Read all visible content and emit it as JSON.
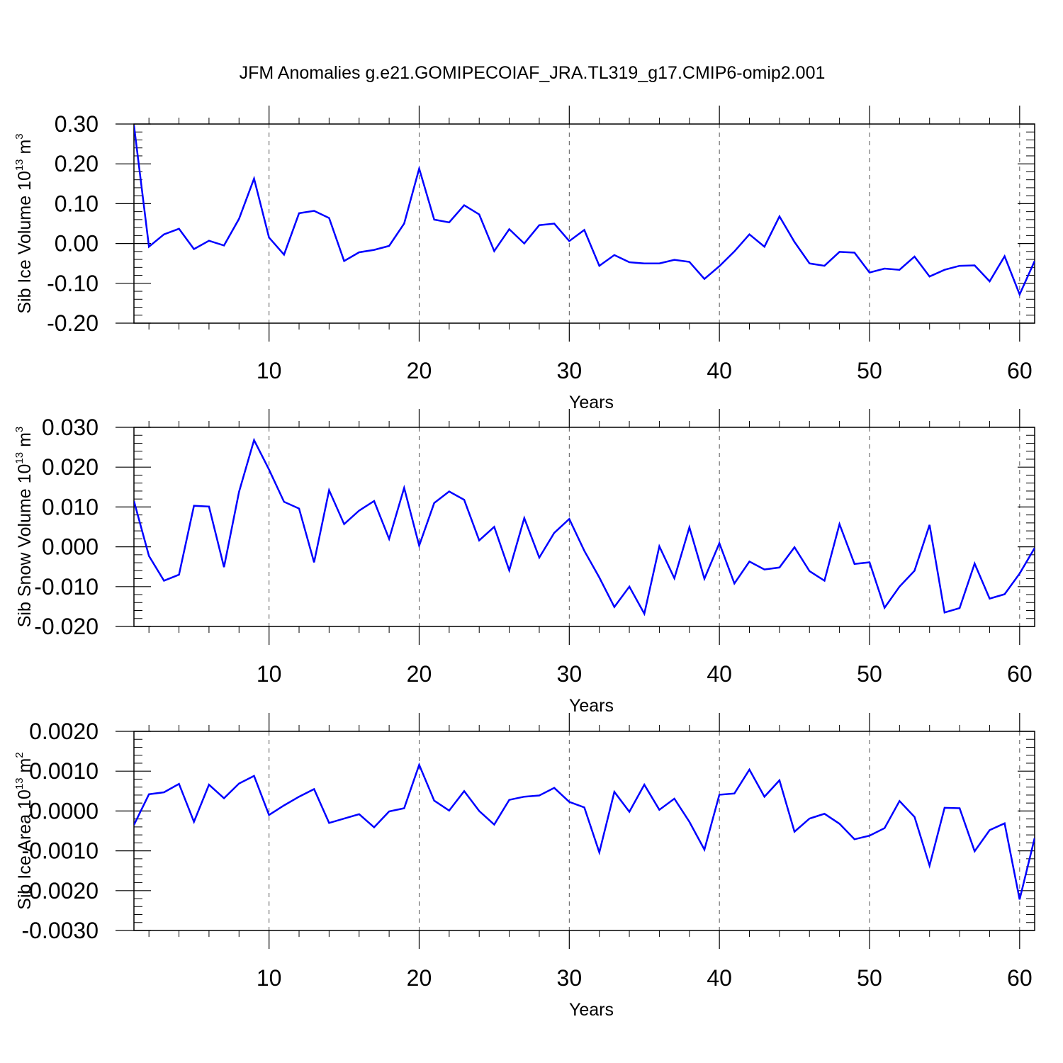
{
  "figure": {
    "title": "JFM Anomalies g.e21.GOMIPECOIAF_JRA.TL319_g17.CMIP6-omip2.001"
  },
  "colors": {
    "line": "#0000ff",
    "axis": "#000000",
    "grid": "#555555"
  },
  "chart_data": [
    {
      "type": "line",
      "xlabel": "Years",
      "ylabel": "Sib Ice Volume 10",
      "ylabel_exp": "13",
      "ylabel_unit": " m",
      "ylabel_unit_exp": "3",
      "xlim": [
        1,
        61
      ],
      "ylim": [
        -0.2,
        0.3
      ],
      "xticks": [
        10,
        20,
        30,
        40,
        50,
        60
      ],
      "yticks": [
        -0.2,
        -0.1,
        0.0,
        0.1,
        0.2,
        0.3
      ],
      "ytick_labels": [
        "-0.20",
        "-0.10",
        "0.00",
        "0.10",
        "0.20",
        "0.30"
      ],
      "grid": "vertical dashed at major x ticks",
      "x": [
        1,
        2,
        3,
        4,
        5,
        6,
        7,
        8,
        9,
        10,
        11,
        12,
        13,
        14,
        15,
        16,
        17,
        18,
        19,
        20,
        21,
        22,
        23,
        24,
        25,
        26,
        27,
        28,
        29,
        30,
        31,
        32,
        33,
        34,
        35,
        36,
        37,
        38,
        39,
        40,
        41,
        42,
        43,
        44,
        45,
        46,
        47,
        48,
        49,
        50,
        51,
        52,
        53,
        54,
        55,
        56,
        57,
        58,
        59,
        60,
        61
      ],
      "values": [
        0.297,
        -0.008,
        0.023,
        0.037,
        -0.014,
        0.007,
        -0.005,
        0.062,
        0.163,
        0.015,
        -0.028,
        0.076,
        0.082,
        0.064,
        -0.044,
        -0.022,
        -0.016,
        -0.006,
        0.05,
        0.188,
        0.06,
        0.053,
        0.096,
        0.073,
        -0.019,
        0.036,
        0.0,
        0.046,
        0.05,
        0.006,
        0.034,
        -0.056,
        -0.029,
        -0.047,
        -0.05,
        -0.05,
        -0.041,
        -0.046,
        -0.089,
        -0.057,
        -0.02,
        0.023,
        -0.008,
        0.068,
        0.004,
        -0.05,
        -0.056,
        -0.021,
        -0.023,
        -0.073,
        -0.063,
        -0.066,
        -0.033,
        -0.083,
        -0.066,
        -0.056,
        -0.055,
        -0.095,
        -0.032,
        -0.128,
        -0.044
      ]
    },
    {
      "type": "line",
      "xlabel": "Years",
      "ylabel": "Sib Snow Volume 10",
      "ylabel_exp": "13",
      "ylabel_unit": " m",
      "ylabel_unit_exp": "3",
      "xlim": [
        1,
        61
      ],
      "ylim": [
        -0.02,
        0.03
      ],
      "xticks": [
        10,
        20,
        30,
        40,
        50,
        60
      ],
      "yticks": [
        -0.02,
        -0.01,
        0.0,
        0.01,
        0.02,
        0.03
      ],
      "ytick_labels": [
        "-0.020",
        "-0.010",
        "0.000",
        "0.010",
        "0.020",
        "0.030"
      ],
      "grid": "vertical dashed at major x ticks",
      "x": [
        1,
        2,
        3,
        4,
        5,
        6,
        7,
        8,
        9,
        10,
        11,
        12,
        13,
        14,
        15,
        16,
        17,
        18,
        19,
        20,
        21,
        22,
        23,
        24,
        25,
        26,
        27,
        28,
        29,
        30,
        31,
        32,
        33,
        34,
        35,
        36,
        37,
        38,
        39,
        40,
        41,
        42,
        43,
        44,
        45,
        46,
        47,
        48,
        49,
        50,
        51,
        52,
        53,
        54,
        55,
        56,
        57,
        58,
        59,
        60,
        61
      ],
      "values": [
        0.0115,
        -0.0023,
        -0.0085,
        -0.007,
        0.0103,
        0.0101,
        -0.0051,
        0.0138,
        0.0268,
        0.0194,
        0.0113,
        0.0096,
        -0.0039,
        0.0142,
        0.0057,
        0.0091,
        0.0115,
        0.002,
        0.0148,
        0.0003,
        0.011,
        0.0139,
        0.0118,
        0.0016,
        0.005,
        -0.0059,
        0.0072,
        -0.0027,
        0.0035,
        0.007,
        -0.001,
        -0.0077,
        -0.0151,
        -0.01,
        -0.0168,
        0.0001,
        -0.0079,
        0.0049,
        -0.008,
        0.0009,
        -0.0092,
        -0.0037,
        -0.0057,
        -0.0052,
        -0.0001,
        -0.0061,
        -0.0085,
        0.0057,
        -0.0043,
        -0.0039,
        -0.0153,
        -0.01,
        -0.006,
        0.0055,
        -0.0165,
        -0.0154,
        -0.0042,
        -0.013,
        -0.0119,
        -0.0067,
        -0.0003
      ]
    },
    {
      "type": "line",
      "xlabel": "Years",
      "ylabel": "Sib Ice Area 10",
      "ylabel_exp": "13",
      "ylabel_unit": " m",
      "ylabel_unit_exp": "2",
      "xlim": [
        1,
        61
      ],
      "ylim": [
        -0.003,
        0.002
      ],
      "xticks": [
        10,
        20,
        30,
        40,
        50,
        60
      ],
      "yticks": [
        -0.003,
        -0.002,
        -0.001,
        0.0,
        0.001,
        0.002
      ],
      "ytick_labels": [
        "-0.0030",
        "-0.0020",
        "-0.0010",
        "0.0000",
        "0.0010",
        "0.0020"
      ],
      "grid": "vertical dashed at major x ticks",
      "x": [
        1,
        2,
        3,
        4,
        5,
        6,
        7,
        8,
        9,
        10,
        11,
        12,
        13,
        14,
        15,
        16,
        17,
        18,
        19,
        20,
        21,
        22,
        23,
        24,
        25,
        26,
        27,
        28,
        29,
        30,
        31,
        32,
        33,
        34,
        35,
        36,
        37,
        38,
        39,
        40,
        41,
        42,
        43,
        44,
        45,
        46,
        47,
        48,
        49,
        50,
        51,
        52,
        53,
        54,
        55,
        56,
        57,
        58,
        59,
        60,
        61
      ],
      "values": [
        -0.00035,
        0.00042,
        0.00047,
        0.00068,
        -0.00027,
        0.00066,
        0.00032,
        0.00069,
        0.00088,
        -0.0001,
        0.00014,
        0.00036,
        0.00055,
        -0.0003,
        -0.00019,
        -8e-05,
        -0.00041,
        -1e-05,
        7e-05,
        0.00116,
        0.00026,
        1e-05,
        0.0005,
        0.0,
        -0.00034,
        0.00028,
        0.00036,
        0.00039,
        0.00058,
        0.00023,
        9e-05,
        -0.00104,
        0.00048,
        -2e-05,
        0.00066,
        3e-05,
        0.00031,
        -0.00027,
        -0.00097,
        0.00041,
        0.00044,
        0.00104,
        0.00036,
        0.00077,
        -0.00052,
        -0.00019,
        -7e-05,
        -0.00032,
        -0.00071,
        -0.00062,
        -0.00043,
        0.00025,
        -0.00015,
        -0.00137,
        8e-05,
        7e-05,
        -0.00101,
        -0.00048,
        -0.00031,
        -0.00222,
        -0.00068
      ]
    }
  ]
}
